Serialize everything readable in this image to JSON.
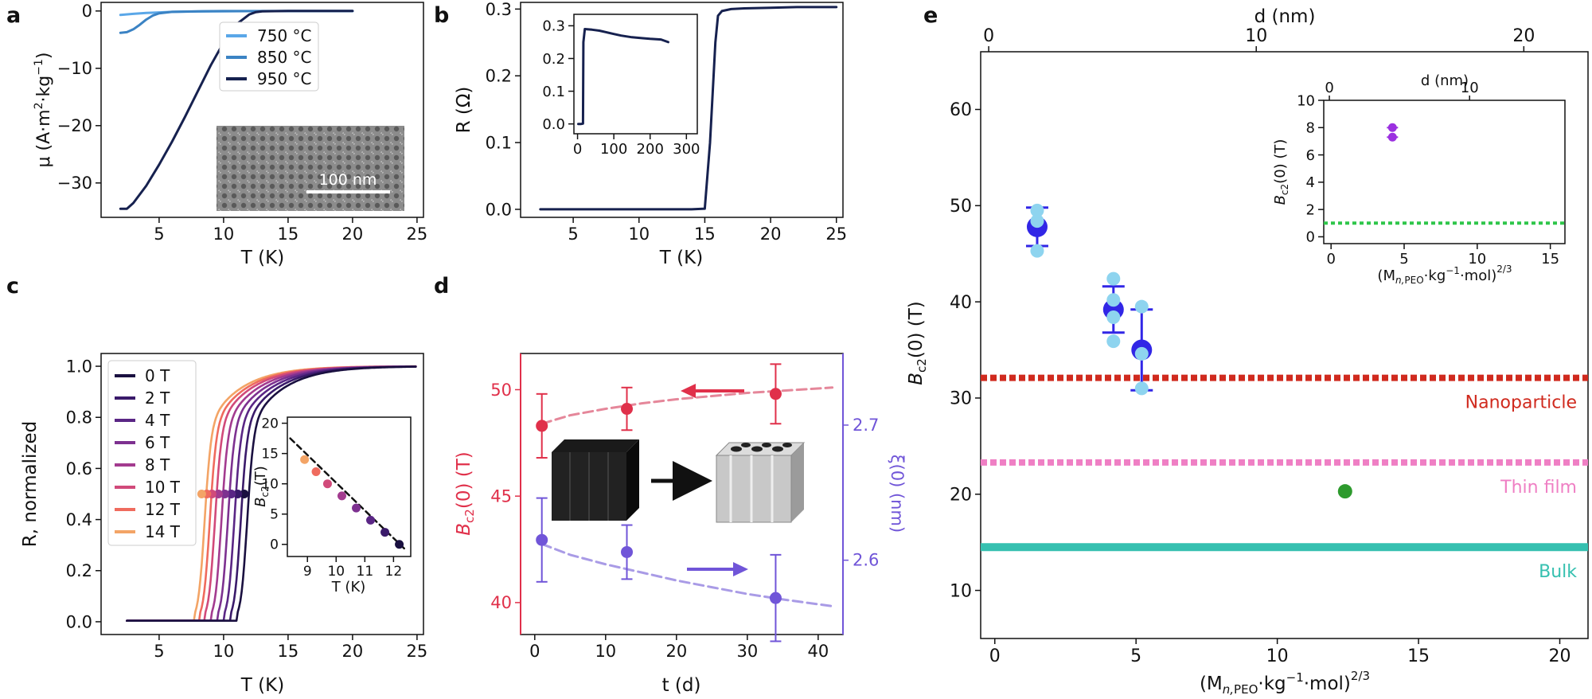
{
  "chart_data": [
    {
      "panel": "a",
      "type": "line",
      "ylabel": "μ (A·m²·kg⁻¹)",
      "xlabel": "T (K)",
      "xlim": [
        0.5,
        25.5
      ],
      "ylim": [
        -36,
        1.5
      ],
      "xticks": [
        5,
        10,
        15,
        20,
        25
      ],
      "yticks": [
        0,
        -10,
        -20,
        -30
      ],
      "legend_position": "top-right",
      "series": [
        {
          "name": "750 °C",
          "color": "#5aa7e8",
          "x": [
            2,
            3,
            4,
            5,
            6,
            8,
            10,
            12,
            15,
            20
          ],
          "y": [
            -0.7,
            -0.5,
            -0.35,
            -0.25,
            -0.15,
            -0.08,
            -0.05,
            -0.03,
            -0.02,
            -0.02
          ]
        },
        {
          "name": "850 °C",
          "color": "#3b83c4",
          "x": [
            2,
            2.5,
            3,
            3.5,
            4,
            4.5,
            5,
            6,
            8,
            10,
            12,
            15,
            20
          ],
          "y": [
            -3.8,
            -3.7,
            -3.2,
            -2.4,
            -1.5,
            -0.8,
            -0.4,
            -0.15,
            -0.05,
            -0.02,
            -0.01,
            -0.01,
            -0.01
          ]
        },
        {
          "name": "950 °C",
          "color": "#16214f",
          "x": [
            2,
            2.5,
            3,
            4,
            5,
            6,
            7,
            8,
            9,
            10,
            11,
            12,
            12.5,
            13,
            15,
            17,
            20
          ],
          "y": [
            -34.5,
            -34.5,
            -33.5,
            -30.5,
            -26.8,
            -22.8,
            -18.5,
            -14,
            -9.5,
            -5.5,
            -2.3,
            -0.6,
            -0.2,
            -0.05,
            0,
            0,
            0
          ]
        }
      ],
      "inset": {
        "type": "image",
        "scale_bar_label": "100 nm"
      }
    },
    {
      "panel": "b",
      "type": "line",
      "ylabel": "R (Ω)",
      "xlabel": "T (K)",
      "xlim": [
        1,
        25.5
      ],
      "ylim": [
        -0.012,
        0.31
      ],
      "xticks": [
        5,
        10,
        15,
        20,
        25
      ],
      "yticks": [
        0.0,
        0.1,
        0.2,
        0.3
      ],
      "series": [
        {
          "name": "",
          "color": "#16214f",
          "x": [
            2.5,
            5,
            10,
            14,
            15,
            15.4,
            15.8,
            16,
            16.3,
            17,
            18,
            20,
            22,
            25
          ],
          "y": [
            0,
            0,
            0,
            0,
            0.001,
            0.1,
            0.25,
            0.29,
            0.297,
            0.3,
            0.301,
            0.302,
            0.303,
            0.303
          ]
        }
      ],
      "inset": {
        "type": "line",
        "xlim": [
          -10,
          330
        ],
        "ylim": [
          -0.03,
          0.335
        ],
        "xticks": [
          0,
          100,
          200,
          300
        ],
        "yticks": [
          0.0,
          0.1,
          0.2,
          0.3
        ],
        "x": [
          2,
          10,
          15,
          16,
          20,
          40,
          60,
          80,
          100,
          120,
          150,
          180,
          200,
          230,
          250
        ],
        "y": [
          0,
          0,
          0.001,
          0.25,
          0.29,
          0.288,
          0.285,
          0.28,
          0.275,
          0.27,
          0.265,
          0.262,
          0.26,
          0.258,
          0.25
        ]
      }
    },
    {
      "panel": "c",
      "type": "line",
      "ylabel": "R, normalized",
      "xlabel": "T (K)",
      "xlim": [
        0.5,
        25.5
      ],
      "ylim": [
        -0.05,
        1.05
      ],
      "xticks": [
        5,
        10,
        15,
        20,
        25
      ],
      "yticks": [
        0.0,
        0.2,
        0.4,
        0.6,
        0.8,
        1.0
      ],
      "legend_position": "top-left",
      "series": [
        {
          "name": "0 T",
          "color": "#1a1040",
          "tc": 12.2
        },
        {
          "name": "2 T",
          "color": "#3a1a6a",
          "tc": 11.7
        },
        {
          "name": "4 T",
          "color": "#5a2685",
          "tc": 11.2
        },
        {
          "name": "6 T",
          "color": "#7d3190",
          "tc": 10.7
        },
        {
          "name": "8 T",
          "color": "#a33b8f",
          "tc": 10.2
        },
        {
          "name": "10 T",
          "color": "#d14a7a",
          "tc": 9.7
        },
        {
          "name": "12 T",
          "color": "#ef6b5e",
          "tc": 9.3
        },
        {
          "name": "14 T",
          "color": "#f3a466",
          "tc": 8.9
        }
      ],
      "inset": {
        "type": "scatter",
        "ylabel": "B_c2 (T)",
        "xlabel": "T (K)",
        "xlim": [
          8.3,
          12.6
        ],
        "ylim": [
          -2,
          21
        ],
        "xticks": [
          9,
          10,
          11,
          12
        ],
        "yticks": [
          0,
          5,
          10,
          15,
          20
        ],
        "points": [
          {
            "x": 8.9,
            "y": 14,
            "color": "#f3a466"
          },
          {
            "x": 9.3,
            "y": 12,
            "color": "#ef6b5e"
          },
          {
            "x": 9.7,
            "y": 10,
            "color": "#d14a7a"
          },
          {
            "x": 10.2,
            "y": 8,
            "color": "#a33b8f"
          },
          {
            "x": 10.7,
            "y": 6,
            "color": "#7d3190"
          },
          {
            "x": 11.2,
            "y": 4,
            "color": "#5a2685"
          },
          {
            "x": 11.7,
            "y": 2,
            "color": "#3a1a6a"
          },
          {
            "x": 12.2,
            "y": 0,
            "color": "#1a1040"
          }
        ],
        "fit": {
          "x": [
            8.4,
            12.4
          ],
          "y": [
            17.5,
            -0.8
          ]
        }
      }
    },
    {
      "panel": "d",
      "type": "scatter",
      "xlabel": "t (d)",
      "ylabel": "B_c2(0) (T)",
      "y2label": "ξ(0) (nm)",
      "xlim": [
        -2,
        43.5
      ],
      "ylim": [
        38.5,
        51.7
      ],
      "y2lim": [
        2.545,
        2.753
      ],
      "xticks": [
        0,
        10,
        20,
        30,
        40
      ],
      "yticks": [
        40,
        45,
        50
      ],
      "y2ticks": [
        2.6,
        2.7
      ],
      "series": [
        {
          "name": "",
          "color": "#e0304a",
          "x": [
            1,
            13,
            34
          ],
          "y": [
            48.3,
            49.1,
            49.8
          ],
          "err": [
            1.5,
            1.0,
            1.4
          ],
          "fit_x": [
            1,
            5,
            10,
            15,
            20,
            25,
            30,
            35,
            42
          ],
          "fit_y": [
            48.4,
            48.8,
            49.1,
            49.35,
            49.55,
            49.7,
            49.85,
            49.95,
            50.1
          ]
        },
        {
          "name": "",
          "color": "#7055d8",
          "x": [
            1,
            13,
            34
          ],
          "y2": [
            2.615,
            2.606,
            2.572
          ],
          "err2": [
            0.031,
            0.02,
            0.032
          ],
          "fit_x": [
            1,
            5,
            10,
            15,
            20,
            25,
            30,
            35,
            42
          ],
          "fit_y2": [
            2.612,
            2.604,
            2.597,
            2.591,
            2.585,
            2.58,
            2.575,
            2.571,
            2.566
          ]
        }
      ]
    },
    {
      "panel": "e",
      "type": "scatter",
      "xlabel": "(M_n,PEO · kg⁻¹ · mol)^2/3",
      "ylabel": "B_c2(0) (T)",
      "x2label": "d (nm)",
      "xlim": [
        -0.5,
        21
      ],
      "ylim": [
        5,
        66
      ],
      "xticks": [
        0,
        5,
        10,
        15,
        20
      ],
      "yticks": [
        10,
        20,
        30,
        40,
        50,
        60
      ],
      "x2lim": [
        -0.3,
        22.4
      ],
      "x2ticks": [
        0,
        10,
        20
      ],
      "reference_lines": [
        {
          "label": "Nanoparticle",
          "y": 32.1,
          "color": "#d02a1e",
          "style": "dotted"
        },
        {
          "label": "Thin film",
          "y": 23.3,
          "color": "#ef7fc4",
          "style": "dotted"
        },
        {
          "label": "Bulk",
          "y": 14.5,
          "color": "#36c0b0",
          "style": "solid"
        }
      ],
      "means": [
        {
          "x": 1.5,
          "y": 47.8,
          "err": 2.0,
          "color": "#3126e6"
        },
        {
          "x": 4.2,
          "y": 39.2,
          "err": 2.4,
          "color": "#3126e6"
        },
        {
          "x": 5.2,
          "y": 35.0,
          "err": 4.2,
          "color": "#3126e6"
        }
      ],
      "samples": [
        {
          "x": 1.5,
          "y": [
            49.5,
            48.4,
            45.3
          ],
          "color": "#8ed4ef"
        },
        {
          "x": 4.2,
          "y": [
            42.4,
            40.2,
            38.4,
            35.9
          ],
          "color": "#8ed4ef"
        },
        {
          "x": 5.2,
          "y": [
            39.5,
            34.6,
            31.0
          ],
          "color": "#8ed4ef"
        }
      ],
      "other_point": {
        "x": 12.4,
        "y": 20.3,
        "color": "#2d9a2d"
      },
      "inset": {
        "ylabel": "B_c2(0) (T)",
        "xlabel": "(M_n,PEO · kg⁻¹ · mol)^2/3",
        "x2label": "d (nm)",
        "xlim": [
          -0.5,
          16
        ],
        "ylim": [
          -0.5,
          10
        ],
        "xticks": [
          0,
          5,
          10,
          15
        ],
        "yticks": [
          0,
          2,
          4,
          6,
          8,
          10
        ],
        "x2lim": [
          -0.4,
          16.8
        ],
        "x2ticks": [
          0,
          10
        ],
        "points": [
          {
            "x": 4.2,
            "y": 8.0,
            "color": "#9b30e0"
          },
          {
            "x": 4.2,
            "y": 7.3,
            "color": "#9b30e0"
          }
        ],
        "ref_line": {
          "y": 1.0,
          "color": "#2fc64a"
        }
      }
    }
  ],
  "panel_labels": {
    "a": "a",
    "b": "b",
    "c": "c",
    "d": "d",
    "e": "e"
  },
  "axis_text": {
    "a_ylabel": "μ (A·m",
    "a_ylabel_sup": "2",
    "a_ylabel_mid": "·kg",
    "a_ylabel_sup2": "−1",
    "a_ylabel_end": ")",
    "t_k": "T (K)",
    "b_ylabel": "R (Ω)",
    "c_ylabel": "R, normalized",
    "d_xlabel": "t (d)",
    "d_ylabel": "B",
    "d_ylabel_sub": "c2",
    "d_ylabel_end": "(0) (T)",
    "d_y2label": "ξ(0) (nm)",
    "e_x2label": "d (nm)",
    "e_ylabel": "B",
    "e_ylabel_sub": "c2",
    "e_ylabel_end": "(0) (T)",
    "e_xlabel_main": "(M",
    "e_xlabel_sub": "n,",
    "e_xlabel_sub2": "PEO",
    "e_xlabel_mid": "·kg",
    "e_xlabel_sup": "−1",
    "e_xlabel_end": "·mol)",
    "e_xlabel_exp": "2/3",
    "c_inset_ylabel": "B",
    "c_inset_ylabel_sub": "c2",
    "c_inset_ylabel_end": "(T)"
  }
}
